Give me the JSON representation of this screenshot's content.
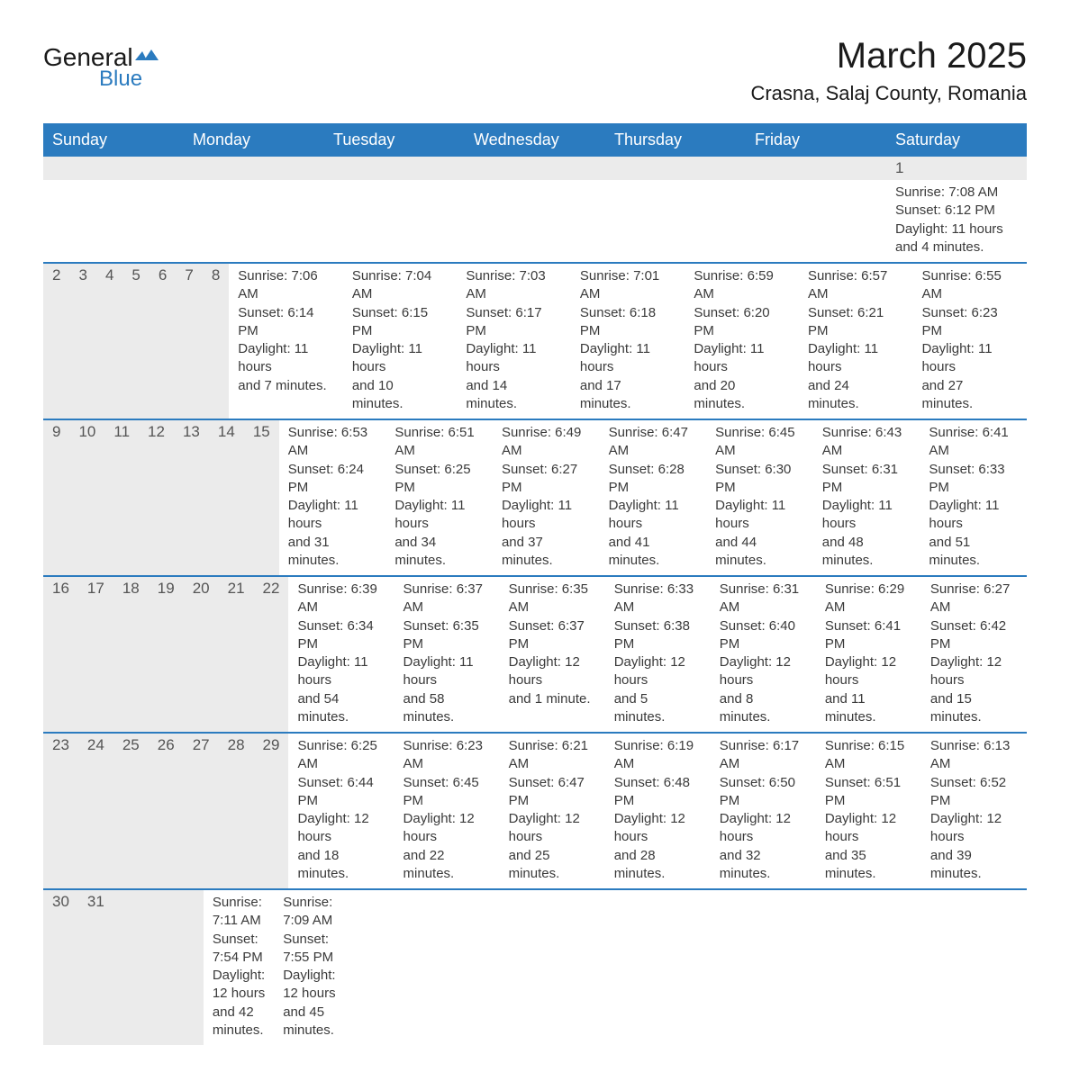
{
  "logo": {
    "text_general": "General",
    "text_blue": "Blue",
    "accent_color": "#2b7bbf",
    "text_color": "#1a1a1a"
  },
  "title": {
    "month": "March 2025",
    "location": "Crasna, Salaj County, Romania"
  },
  "colors": {
    "header_bg": "#2b7bbf",
    "header_text": "#ffffff",
    "daynum_bg": "#ebebeb",
    "daynum_text": "#555555",
    "body_text": "#3a3a3a",
    "divider": "#2b7bbf",
    "page_bg": "#ffffff"
  },
  "typography": {
    "title_fontsize": 40,
    "location_fontsize": 22,
    "header_fontsize": 18,
    "daynum_fontsize": 17,
    "body_fontsize": 15
  },
  "weekdays": [
    "Sunday",
    "Monday",
    "Tuesday",
    "Wednesday",
    "Thursday",
    "Friday",
    "Saturday"
  ],
  "weeks": [
    {
      "day_numbers": [
        "",
        "",
        "",
        "",
        "",
        "",
        "1"
      ],
      "days": [
        null,
        null,
        null,
        null,
        null,
        null,
        {
          "sunrise": "Sunrise: 7:08 AM",
          "sunset": "Sunset: 6:12 PM",
          "daylight1": "Daylight: 11 hours",
          "daylight2": "and 4 minutes."
        }
      ]
    },
    {
      "day_numbers": [
        "2",
        "3",
        "4",
        "5",
        "6",
        "7",
        "8"
      ],
      "days": [
        {
          "sunrise": "Sunrise: 7:06 AM",
          "sunset": "Sunset: 6:14 PM",
          "daylight1": "Daylight: 11 hours",
          "daylight2": "and 7 minutes."
        },
        {
          "sunrise": "Sunrise: 7:04 AM",
          "sunset": "Sunset: 6:15 PM",
          "daylight1": "Daylight: 11 hours",
          "daylight2": "and 10 minutes."
        },
        {
          "sunrise": "Sunrise: 7:03 AM",
          "sunset": "Sunset: 6:17 PM",
          "daylight1": "Daylight: 11 hours",
          "daylight2": "and 14 minutes."
        },
        {
          "sunrise": "Sunrise: 7:01 AM",
          "sunset": "Sunset: 6:18 PM",
          "daylight1": "Daylight: 11 hours",
          "daylight2": "and 17 minutes."
        },
        {
          "sunrise": "Sunrise: 6:59 AM",
          "sunset": "Sunset: 6:20 PM",
          "daylight1": "Daylight: 11 hours",
          "daylight2": "and 20 minutes."
        },
        {
          "sunrise": "Sunrise: 6:57 AM",
          "sunset": "Sunset: 6:21 PM",
          "daylight1": "Daylight: 11 hours",
          "daylight2": "and 24 minutes."
        },
        {
          "sunrise": "Sunrise: 6:55 AM",
          "sunset": "Sunset: 6:23 PM",
          "daylight1": "Daylight: 11 hours",
          "daylight2": "and 27 minutes."
        }
      ]
    },
    {
      "day_numbers": [
        "9",
        "10",
        "11",
        "12",
        "13",
        "14",
        "15"
      ],
      "days": [
        {
          "sunrise": "Sunrise: 6:53 AM",
          "sunset": "Sunset: 6:24 PM",
          "daylight1": "Daylight: 11 hours",
          "daylight2": "and 31 minutes."
        },
        {
          "sunrise": "Sunrise: 6:51 AM",
          "sunset": "Sunset: 6:25 PM",
          "daylight1": "Daylight: 11 hours",
          "daylight2": "and 34 minutes."
        },
        {
          "sunrise": "Sunrise: 6:49 AM",
          "sunset": "Sunset: 6:27 PM",
          "daylight1": "Daylight: 11 hours",
          "daylight2": "and 37 minutes."
        },
        {
          "sunrise": "Sunrise: 6:47 AM",
          "sunset": "Sunset: 6:28 PM",
          "daylight1": "Daylight: 11 hours",
          "daylight2": "and 41 minutes."
        },
        {
          "sunrise": "Sunrise: 6:45 AM",
          "sunset": "Sunset: 6:30 PM",
          "daylight1": "Daylight: 11 hours",
          "daylight2": "and 44 minutes."
        },
        {
          "sunrise": "Sunrise: 6:43 AM",
          "sunset": "Sunset: 6:31 PM",
          "daylight1": "Daylight: 11 hours",
          "daylight2": "and 48 minutes."
        },
        {
          "sunrise": "Sunrise: 6:41 AM",
          "sunset": "Sunset: 6:33 PM",
          "daylight1": "Daylight: 11 hours",
          "daylight2": "and 51 minutes."
        }
      ]
    },
    {
      "day_numbers": [
        "16",
        "17",
        "18",
        "19",
        "20",
        "21",
        "22"
      ],
      "days": [
        {
          "sunrise": "Sunrise: 6:39 AM",
          "sunset": "Sunset: 6:34 PM",
          "daylight1": "Daylight: 11 hours",
          "daylight2": "and 54 minutes."
        },
        {
          "sunrise": "Sunrise: 6:37 AM",
          "sunset": "Sunset: 6:35 PM",
          "daylight1": "Daylight: 11 hours",
          "daylight2": "and 58 minutes."
        },
        {
          "sunrise": "Sunrise: 6:35 AM",
          "sunset": "Sunset: 6:37 PM",
          "daylight1": "Daylight: 12 hours",
          "daylight2": "and 1 minute."
        },
        {
          "sunrise": "Sunrise: 6:33 AM",
          "sunset": "Sunset: 6:38 PM",
          "daylight1": "Daylight: 12 hours",
          "daylight2": "and 5 minutes."
        },
        {
          "sunrise": "Sunrise: 6:31 AM",
          "sunset": "Sunset: 6:40 PM",
          "daylight1": "Daylight: 12 hours",
          "daylight2": "and 8 minutes."
        },
        {
          "sunrise": "Sunrise: 6:29 AM",
          "sunset": "Sunset: 6:41 PM",
          "daylight1": "Daylight: 12 hours",
          "daylight2": "and 11 minutes."
        },
        {
          "sunrise": "Sunrise: 6:27 AM",
          "sunset": "Sunset: 6:42 PM",
          "daylight1": "Daylight: 12 hours",
          "daylight2": "and 15 minutes."
        }
      ]
    },
    {
      "day_numbers": [
        "23",
        "24",
        "25",
        "26",
        "27",
        "28",
        "29"
      ],
      "days": [
        {
          "sunrise": "Sunrise: 6:25 AM",
          "sunset": "Sunset: 6:44 PM",
          "daylight1": "Daylight: 12 hours",
          "daylight2": "and 18 minutes."
        },
        {
          "sunrise": "Sunrise: 6:23 AM",
          "sunset": "Sunset: 6:45 PM",
          "daylight1": "Daylight: 12 hours",
          "daylight2": "and 22 minutes."
        },
        {
          "sunrise": "Sunrise: 6:21 AM",
          "sunset": "Sunset: 6:47 PM",
          "daylight1": "Daylight: 12 hours",
          "daylight2": "and 25 minutes."
        },
        {
          "sunrise": "Sunrise: 6:19 AM",
          "sunset": "Sunset: 6:48 PM",
          "daylight1": "Daylight: 12 hours",
          "daylight2": "and 28 minutes."
        },
        {
          "sunrise": "Sunrise: 6:17 AM",
          "sunset": "Sunset: 6:50 PM",
          "daylight1": "Daylight: 12 hours",
          "daylight2": "and 32 minutes."
        },
        {
          "sunrise": "Sunrise: 6:15 AM",
          "sunset": "Sunset: 6:51 PM",
          "daylight1": "Daylight: 12 hours",
          "daylight2": "and 35 minutes."
        },
        {
          "sunrise": "Sunrise: 6:13 AM",
          "sunset": "Sunset: 6:52 PM",
          "daylight1": "Daylight: 12 hours",
          "daylight2": "and 39 minutes."
        }
      ]
    },
    {
      "day_numbers": [
        "30",
        "31",
        "",
        "",
        "",
        "",
        ""
      ],
      "days": [
        {
          "sunrise": "Sunrise: 7:11 AM",
          "sunset": "Sunset: 7:54 PM",
          "daylight1": "Daylight: 12 hours",
          "daylight2": "and 42 minutes."
        },
        {
          "sunrise": "Sunrise: 7:09 AM",
          "sunset": "Sunset: 7:55 PM",
          "daylight1": "Daylight: 12 hours",
          "daylight2": "and 45 minutes."
        },
        null,
        null,
        null,
        null,
        null
      ]
    }
  ]
}
